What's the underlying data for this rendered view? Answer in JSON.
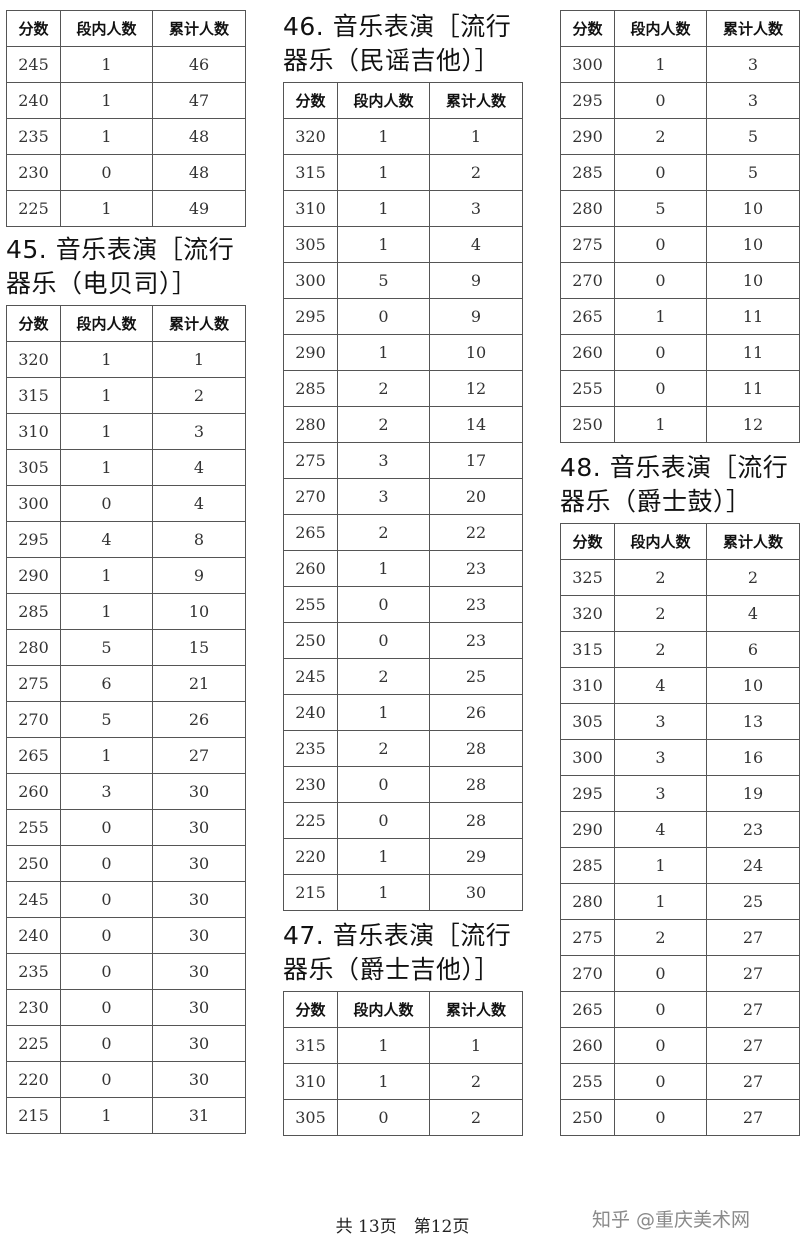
{
  "headers": [
    "分数",
    "段内人数",
    "累计人数"
  ],
  "sections": [
    {
      "id": "s44-cont",
      "title": "",
      "rows": [
        [
          "245",
          "1",
          "46"
        ],
        [
          "240",
          "1",
          "47"
        ],
        [
          "235",
          "1",
          "48"
        ],
        [
          "230",
          "0",
          "48"
        ],
        [
          "225",
          "1",
          "49"
        ]
      ]
    },
    {
      "id": "s45",
      "title": "45. 音乐表演［流行\n器乐（电贝司）］",
      "rows": [
        [
          "320",
          "1",
          "1"
        ],
        [
          "315",
          "1",
          "2"
        ],
        [
          "310",
          "1",
          "3"
        ],
        [
          "305",
          "1",
          "4"
        ],
        [
          "300",
          "0",
          "4"
        ],
        [
          "295",
          "4",
          "8"
        ],
        [
          "290",
          "1",
          "9"
        ],
        [
          "285",
          "1",
          "10"
        ],
        [
          "280",
          "5",
          "15"
        ],
        [
          "275",
          "6",
          "21"
        ],
        [
          "270",
          "5",
          "26"
        ],
        [
          "265",
          "1",
          "27"
        ],
        [
          "260",
          "3",
          "30"
        ],
        [
          "255",
          "0",
          "30"
        ],
        [
          "250",
          "0",
          "30"
        ],
        [
          "245",
          "0",
          "30"
        ],
        [
          "240",
          "0",
          "30"
        ],
        [
          "235",
          "0",
          "30"
        ],
        [
          "230",
          "0",
          "30"
        ],
        [
          "225",
          "0",
          "30"
        ],
        [
          "220",
          "0",
          "30"
        ],
        [
          "215",
          "1",
          "31"
        ]
      ]
    },
    {
      "id": "s46",
      "title": "46. 音乐表演［流行\n器乐（民谣吉他）］",
      "rows": [
        [
          "320",
          "1",
          "1"
        ],
        [
          "315",
          "1",
          "2"
        ],
        [
          "310",
          "1",
          "3"
        ],
        [
          "305",
          "1",
          "4"
        ],
        [
          "300",
          "5",
          "9"
        ],
        [
          "295",
          "0",
          "9"
        ],
        [
          "290",
          "1",
          "10"
        ],
        [
          "285",
          "2",
          "12"
        ],
        [
          "280",
          "2",
          "14"
        ],
        [
          "275",
          "3",
          "17"
        ],
        [
          "270",
          "3",
          "20"
        ],
        [
          "265",
          "2",
          "22"
        ],
        [
          "260",
          "1",
          "23"
        ],
        [
          "255",
          "0",
          "23"
        ],
        [
          "250",
          "0",
          "23"
        ],
        [
          "245",
          "2",
          "25"
        ],
        [
          "240",
          "1",
          "26"
        ],
        [
          "235",
          "2",
          "28"
        ],
        [
          "230",
          "0",
          "28"
        ],
        [
          "225",
          "0",
          "28"
        ],
        [
          "220",
          "1",
          "29"
        ],
        [
          "215",
          "1",
          "30"
        ]
      ]
    },
    {
      "id": "s47",
      "title": "47. 音乐表演［流行\n器乐（爵士吉他）］",
      "rows": [
        [
          "315",
          "1",
          "1"
        ],
        [
          "310",
          "1",
          "2"
        ],
        [
          "305",
          "0",
          "2"
        ]
      ]
    },
    {
      "id": "s47-cont",
      "title": "",
      "rows": [
        [
          "300",
          "1",
          "3"
        ],
        [
          "295",
          "0",
          "3"
        ],
        [
          "290",
          "2",
          "5"
        ],
        [
          "285",
          "0",
          "5"
        ],
        [
          "280",
          "5",
          "10"
        ],
        [
          "275",
          "0",
          "10"
        ],
        [
          "270",
          "0",
          "10"
        ],
        [
          "265",
          "1",
          "11"
        ],
        [
          "260",
          "0",
          "11"
        ],
        [
          "255",
          "0",
          "11"
        ],
        [
          "250",
          "1",
          "12"
        ]
      ]
    },
    {
      "id": "s48",
      "title": "48. 音乐表演［流行\n器乐（爵士鼓）］",
      "rows": [
        [
          "325",
          "2",
          "2"
        ],
        [
          "320",
          "2",
          "4"
        ],
        [
          "315",
          "2",
          "6"
        ],
        [
          "310",
          "4",
          "10"
        ],
        [
          "305",
          "3",
          "13"
        ],
        [
          "300",
          "3",
          "16"
        ],
        [
          "295",
          "3",
          "19"
        ],
        [
          "290",
          "4",
          "23"
        ],
        [
          "285",
          "1",
          "24"
        ],
        [
          "280",
          "1",
          "25"
        ],
        [
          "275",
          "2",
          "27"
        ],
        [
          "270",
          "0",
          "27"
        ],
        [
          "265",
          "0",
          "27"
        ],
        [
          "260",
          "0",
          "27"
        ],
        [
          "255",
          "0",
          "27"
        ],
        [
          "250",
          "0",
          "27"
        ]
      ]
    }
  ],
  "footer": {
    "page_info": "共 13页　第12页"
  },
  "watermark": "知乎 @重庆美术网"
}
